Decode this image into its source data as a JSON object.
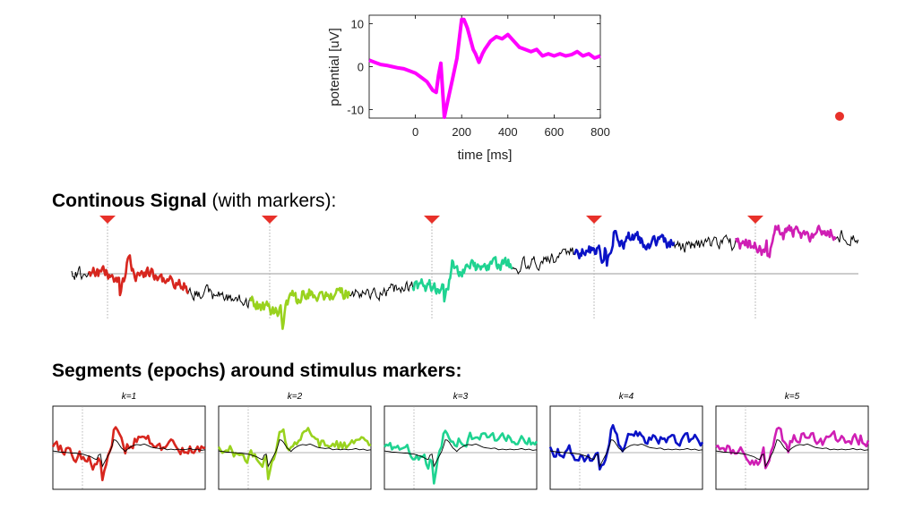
{
  "headings": {
    "continuous": {
      "bold": "Continous Signal",
      "normal": " (with markers):"
    },
    "segments": {
      "bold": "Segments (epochs) around stimulus markers:",
      "normal": ""
    }
  },
  "erp_chart": {
    "type": "line",
    "xlabel": "time  [ms]",
    "ylabel": "potential  [uV]",
    "xlim": [
      -200,
      800
    ],
    "ylim": [
      -12,
      12
    ],
    "xticks": [
      0,
      200,
      400,
      600,
      800
    ],
    "yticks": [
      -10,
      0,
      10
    ],
    "line_color": "#ff00ff",
    "x": [
      -200,
      -175,
      -150,
      -125,
      -100,
      -75,
      -50,
      -25,
      0,
      25,
      50,
      75,
      90,
      100,
      110,
      125,
      140,
      160,
      180,
      200,
      210,
      225,
      250,
      260,
      275,
      290,
      300,
      325,
      350,
      375,
      400,
      425,
      450,
      475,
      500,
      525,
      550,
      575,
      600,
      625,
      650,
      675,
      700,
      725,
      750,
      775,
      800
    ],
    "y": [
      1.5,
      1.0,
      0.5,
      0.3,
      0.0,
      -0.3,
      -0.5,
      -1.0,
      -1.5,
      -2.5,
      -3.5,
      -5.5,
      -6.0,
      -2.0,
      0.8,
      -11.8,
      -8.0,
      -3.0,
      2.0,
      11.0,
      11.0,
      9.0,
      4.0,
      3.0,
      1.0,
      3.0,
      4.0,
      6.0,
      7.0,
      6.5,
      7.5,
      6.0,
      4.5,
      4.0,
      3.5,
      4.0,
      2.5,
      3.0,
      2.5,
      3.0,
      2.5,
      2.8,
      3.5,
      2.5,
      3.0,
      2.0,
      2.5
    ]
  },
  "marker_color": "#e8312a",
  "segments": [
    {
      "label": "k=1",
      "k": "1",
      "color": "#d7261e"
    },
    {
      "label": "k=2",
      "k": "2",
      "color": "#99d21e"
    },
    {
      "label": "k=3",
      "k": "3",
      "color": "#1fd391"
    },
    {
      "label": "k=4",
      "k": "4",
      "color": "#0a12c6"
    },
    {
      "label": "k=5",
      "k": "5",
      "color": "#cf1fb4"
    }
  ],
  "k_prefix": "k",
  "k_equals": "="
}
